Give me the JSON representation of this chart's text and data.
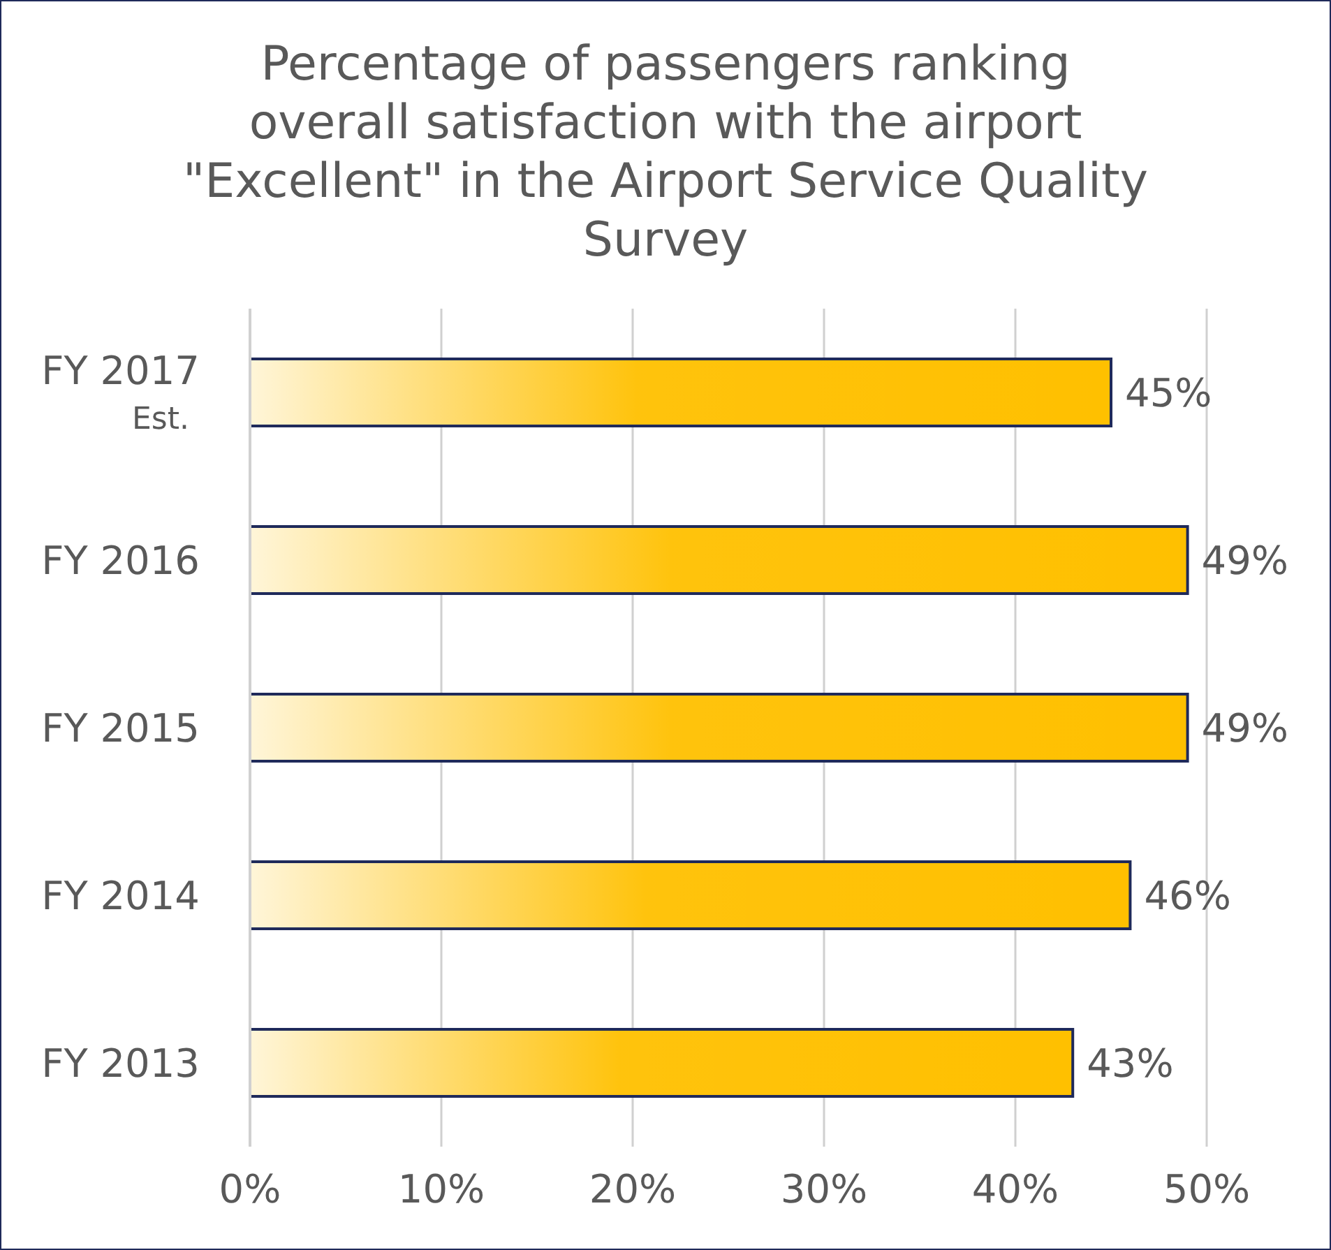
{
  "chart_data": {
    "type": "bar",
    "orientation": "horizontal",
    "title": "Percentage of passengers ranking overall satisfaction with the airport \"Excellent\" in the Airport Service Quality Survey",
    "categories": [
      "FY 2017 Est.",
      "FY 2016",
      "FY 2015",
      "FY 2014",
      "FY 2013"
    ],
    "values": [
      45,
      49,
      49,
      46,
      43
    ],
    "value_labels": [
      "45%",
      "49%",
      "49%",
      "46%",
      "43%"
    ],
    "color": "#ffc000",
    "xlim": [
      0,
      50
    ],
    "xticks": [
      {
        "value": 0,
        "label": "0%"
      },
      {
        "value": 10,
        "label": "10%"
      },
      {
        "value": 20,
        "label": "20%"
      },
      {
        "value": 30,
        "label": "30%"
      },
      {
        "value": 40,
        "label": "40%"
      },
      {
        "value": 50,
        "label": "50%"
      }
    ],
    "grid": "x"
  }
}
